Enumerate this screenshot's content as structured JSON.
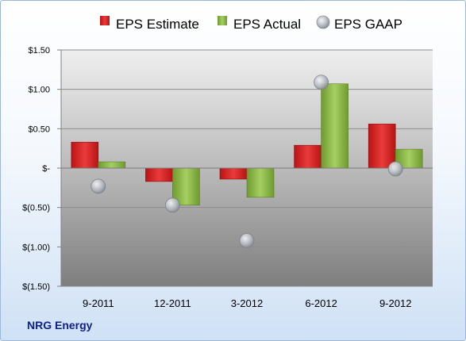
{
  "company_label": "NRG Energy",
  "chart_data": {
    "type": "bar",
    "categories": [
      "9-2011",
      "12-2011",
      "3-2012",
      "6-2012",
      "9-2012"
    ],
    "series": [
      {
        "name": "EPS Estimate",
        "kind": "bar",
        "color": "#d92a2a",
        "values": [
          0.33,
          -0.17,
          -0.14,
          0.29,
          0.56
        ]
      },
      {
        "name": "EPS Actual",
        "kind": "bar",
        "color": "#8fbf4a",
        "values": [
          0.08,
          -0.47,
          -0.37,
          1.07,
          0.24
        ]
      },
      {
        "name": "EPS GAAP",
        "kind": "marker",
        "color": "#b8bcc4",
        "values": [
          -0.23,
          -0.47,
          -0.92,
          1.09,
          -0.01
        ]
      }
    ],
    "ylim": [
      -1.5,
      1.5
    ],
    "yticks": [
      1.5,
      1.0,
      0.5,
      0.0,
      -0.5,
      -1.0,
      -1.5
    ],
    "ytick_labels": [
      "$1.50",
      "$1.00",
      "$0.50",
      "$-",
      "$(0.50)",
      "$(1.00)",
      "$(1.50)"
    ],
    "grid": true,
    "legend_position": "top"
  }
}
